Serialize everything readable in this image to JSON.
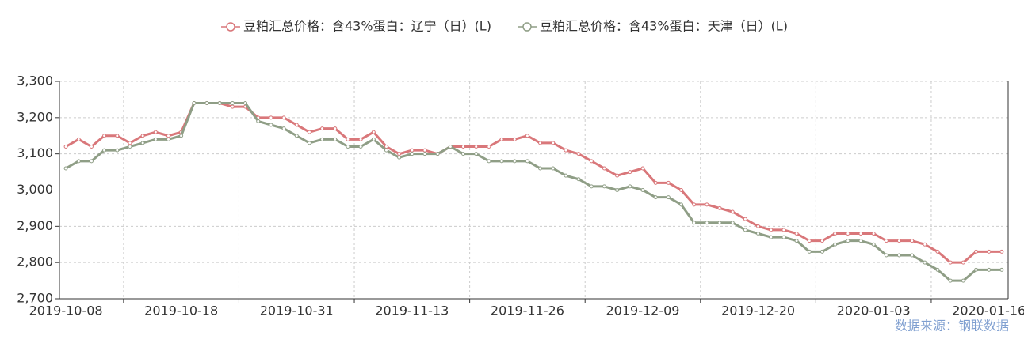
{
  "chart_data": {
    "type": "line",
    "legend": "top",
    "grid": true,
    "source": "数据来源：钢联数据",
    "categories": [
      "2019-10-08",
      null,
      null,
      null,
      null,
      null,
      null,
      null,
      null,
      "2019-10-18",
      null,
      null,
      null,
      null,
      null,
      null,
      null,
      null,
      "2019-10-31",
      null,
      null,
      null,
      null,
      null,
      null,
      null,
      null,
      "2019-11-13",
      null,
      null,
      null,
      null,
      null,
      null,
      null,
      null,
      "2019-11-26",
      null,
      null,
      null,
      null,
      null,
      null,
      null,
      null,
      "2019-12-09",
      null,
      null,
      null,
      null,
      null,
      null,
      null,
      null,
      "2019-12-20",
      null,
      null,
      null,
      null,
      null,
      null,
      null,
      null,
      "2020-01-03",
      null,
      null,
      null,
      null,
      null,
      null,
      null,
      null,
      "2020-01-16",
      null
    ],
    "ylim": [
      2700,
      3300
    ],
    "yticks": [
      {
        "value": 2700,
        "label": "2,700"
      },
      {
        "value": 2800,
        "label": "2,800"
      },
      {
        "value": 2900,
        "label": "2,900"
      },
      {
        "value": 3000,
        "label": "3,000"
      },
      {
        "value": 3100,
        "label": "3,100"
      },
      {
        "value": 3200,
        "label": "3,200"
      },
      {
        "value": 3300,
        "label": "3,300"
      }
    ],
    "series": [
      {
        "name": "豆粕汇总价格：含43%蛋白：辽宁（日）(L)",
        "color": "#d9777a",
        "values": [
          3120,
          3140,
          3120,
          3150,
          3150,
          3130,
          3150,
          3160,
          3150,
          3160,
          3240,
          3240,
          3240,
          3230,
          3230,
          3200,
          3200,
          3200,
          3180,
          3160,
          3170,
          3170,
          3140,
          3140,
          3160,
          3120,
          3100,
          3110,
          3110,
          3100,
          3120,
          3120,
          3120,
          3120,
          3140,
          3140,
          3150,
          3130,
          3130,
          3110,
          3100,
          3080,
          3060,
          3040,
          3050,
          3060,
          3020,
          3020,
          3000,
          2960,
          2960,
          2950,
          2940,
          2920,
          2900,
          2890,
          2890,
          2880,
          2860,
          2860,
          2880,
          2880,
          2880,
          2880,
          2860,
          2860,
          2860,
          2850,
          2830,
          2800,
          2800,
          2830,
          2830,
          2830
        ]
      },
      {
        "name": "豆粕汇总价格：含43%蛋白：天津（日）(L)",
        "color": "#8f9e86",
        "values": [
          3060,
          3080,
          3080,
          3110,
          3110,
          3120,
          3130,
          3140,
          3140,
          3150,
          3240,
          3240,
          3240,
          3240,
          3240,
          3190,
          3180,
          3170,
          3150,
          3130,
          3140,
          3140,
          3120,
          3120,
          3140,
          3110,
          3090,
          3100,
          3100,
          3100,
          3120,
          3100,
          3100,
          3080,
          3080,
          3080,
          3080,
          3060,
          3060,
          3040,
          3030,
          3010,
          3010,
          3000,
          3010,
          3000,
          2980,
          2980,
          2960,
          2910,
          2910,
          2910,
          2910,
          2890,
          2880,
          2870,
          2870,
          2860,
          2830,
          2830,
          2850,
          2860,
          2860,
          2850,
          2820,
          2820,
          2820,
          2800,
          2780,
          2750,
          2750,
          2780,
          2780,
          2780
        ]
      }
    ]
  }
}
